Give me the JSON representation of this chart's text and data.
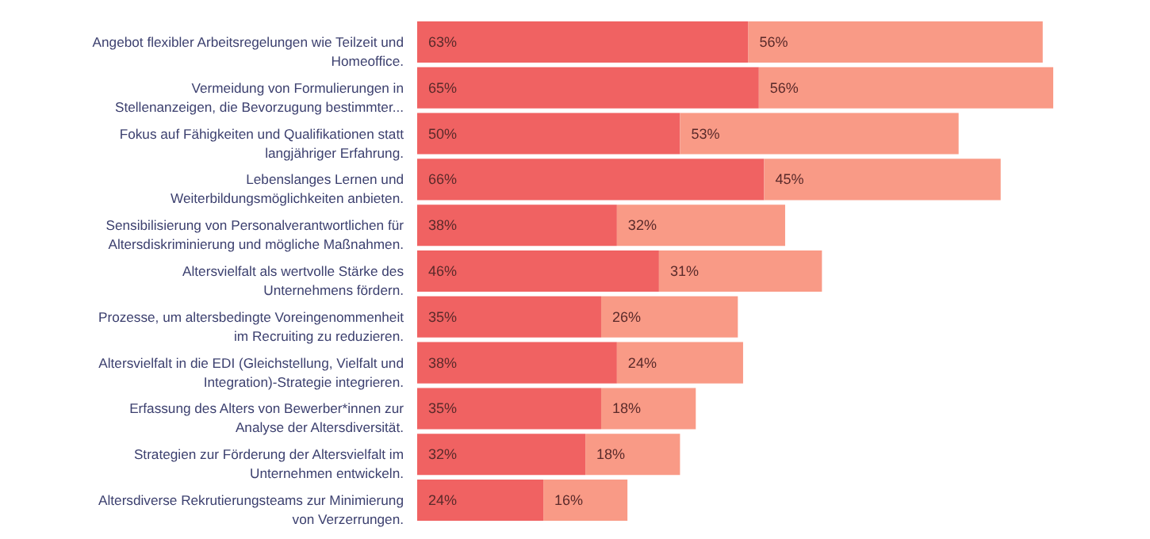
{
  "chart_data": {
    "type": "bar",
    "orientation": "horizontal",
    "stacked": true,
    "categories": [
      "Angebot flexibler Arbeitsregelungen wie Teilzeit und\nHomeoffice.",
      "Vermeidung von Formulierungen in\nStellenanzeigen, die Bevorzugung bestimmter...",
      "Fokus auf Fähigkeiten und Qualifikationen statt\nlangjähriger Erfahrung.",
      "Lebenslanges Lernen und\nWeiterbildungsmöglichkeiten anbieten.",
      "Sensibilisierung von Personalverantwortlichen für\nAltersdiskriminierung und mögliche Maßnahmen.",
      "Altersvielfalt als wertvolle Stärke des\nUnternehmens fördern.",
      "Prozesse, um altersbedingte Voreingenommenheit\nim Recruiting zu reduzieren.",
      "Altersvielfalt in die EDI (Gleichstellung, Vielfalt und\nIntegration)-Strategie integrieren.",
      "Erfassung des Alters von Bewerber*innen zur\nAnalyse der Altersdiversität.",
      "Strategien zur Förderung der Altersvielfalt im\nUnternehmen entwickeln.",
      "Altersdiverse Rekrutierungsteams zur Minimierung\nvon Verzerrungen."
    ],
    "series": [
      {
        "color": "#f06262",
        "values": [
          63,
          65,
          50,
          66,
          38,
          46,
          35,
          38,
          35,
          32,
          24
        ],
        "value_labels": [
          "63%",
          "65%",
          "50%",
          "66%",
          "38%",
          "46%",
          "35%",
          "38%",
          "35%",
          "32%",
          "24%"
        ]
      },
      {
        "color": "#f99a86",
        "values": [
          56,
          56,
          53,
          45,
          32,
          31,
          26,
          24,
          18,
          18,
          16
        ],
        "value_labels": [
          "56%",
          "56%",
          "53%",
          "45%",
          "32%",
          "31%",
          "26%",
          "24%",
          "18%",
          "18%",
          "16%"
        ]
      }
    ]
  }
}
